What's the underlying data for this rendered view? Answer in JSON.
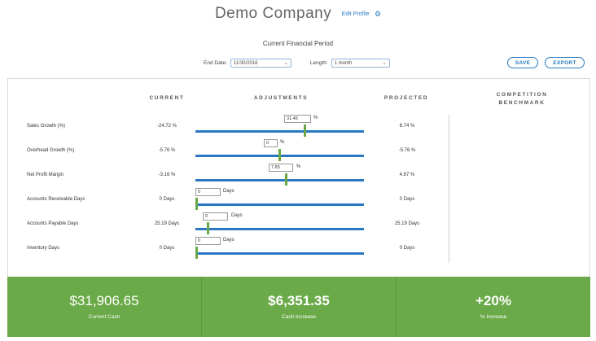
{
  "header": {
    "company_name": "Demo Company",
    "edit_profile_label": "Edit Profile",
    "gear_glyph": "⚙"
  },
  "period": {
    "title": "Current Financial Period",
    "end_date_label": "End Date:",
    "end_date_value": "11/30/2016",
    "length_label": "Length:",
    "length_value": "1 month"
  },
  "actions": {
    "save_label": "SAVE",
    "export_label": "EXPORT"
  },
  "columns": {
    "current": "CURRENT",
    "adjustments": "ADJUSTMENTS",
    "projected": "PROJECTED",
    "benchmark": "COMPETITION BENCHMARK"
  },
  "rows": [
    {
      "label": "Sales Growth (%)",
      "current": "-24.72 %",
      "adjustment": "31.46",
      "unit": "%",
      "projected": "6.74 %",
      "slider_value": 0.65
    },
    {
      "label": "Overhead Growth (%)",
      "current": "-5.76 %",
      "adjustment": "0",
      "unit": "%",
      "projected": "-5.76 %",
      "slider_value": 0.5
    },
    {
      "label": "Net Profit Margin",
      "current": "-3.16 %",
      "adjustment": "7.83",
      "unit": "%",
      "projected": "4.67 %",
      "slider_value": 0.54
    },
    {
      "label": "Accounts Receivable Days",
      "current": "0 Days",
      "adjustment": "0",
      "unit": "Days",
      "projected": "0 Days",
      "slider_value": 0.0
    },
    {
      "label": "Accounts Payable Days",
      "current": "25.19 Days",
      "adjustment": "0",
      "unit": "Days",
      "projected": "25.19 Days",
      "slider_value": 0.07
    },
    {
      "label": "Inventory Days",
      "current": "0 Days",
      "adjustment": "0",
      "unit": "Days",
      "projected": "0 Days",
      "slider_value": 0.0
    }
  ],
  "summary": {
    "current_cash_value": "$31,906.65",
    "current_cash_label": "Current Cash",
    "cash_increase_value": "$6,351.35",
    "cash_increase_label": "Cash Increase",
    "pct_increase_value": "+20%",
    "pct_increase_label": "% Increase"
  },
  "colors": {
    "accent_blue": "#2a77c2",
    "slider_green": "#6aa845",
    "footer_green": "#6aaa48"
  }
}
